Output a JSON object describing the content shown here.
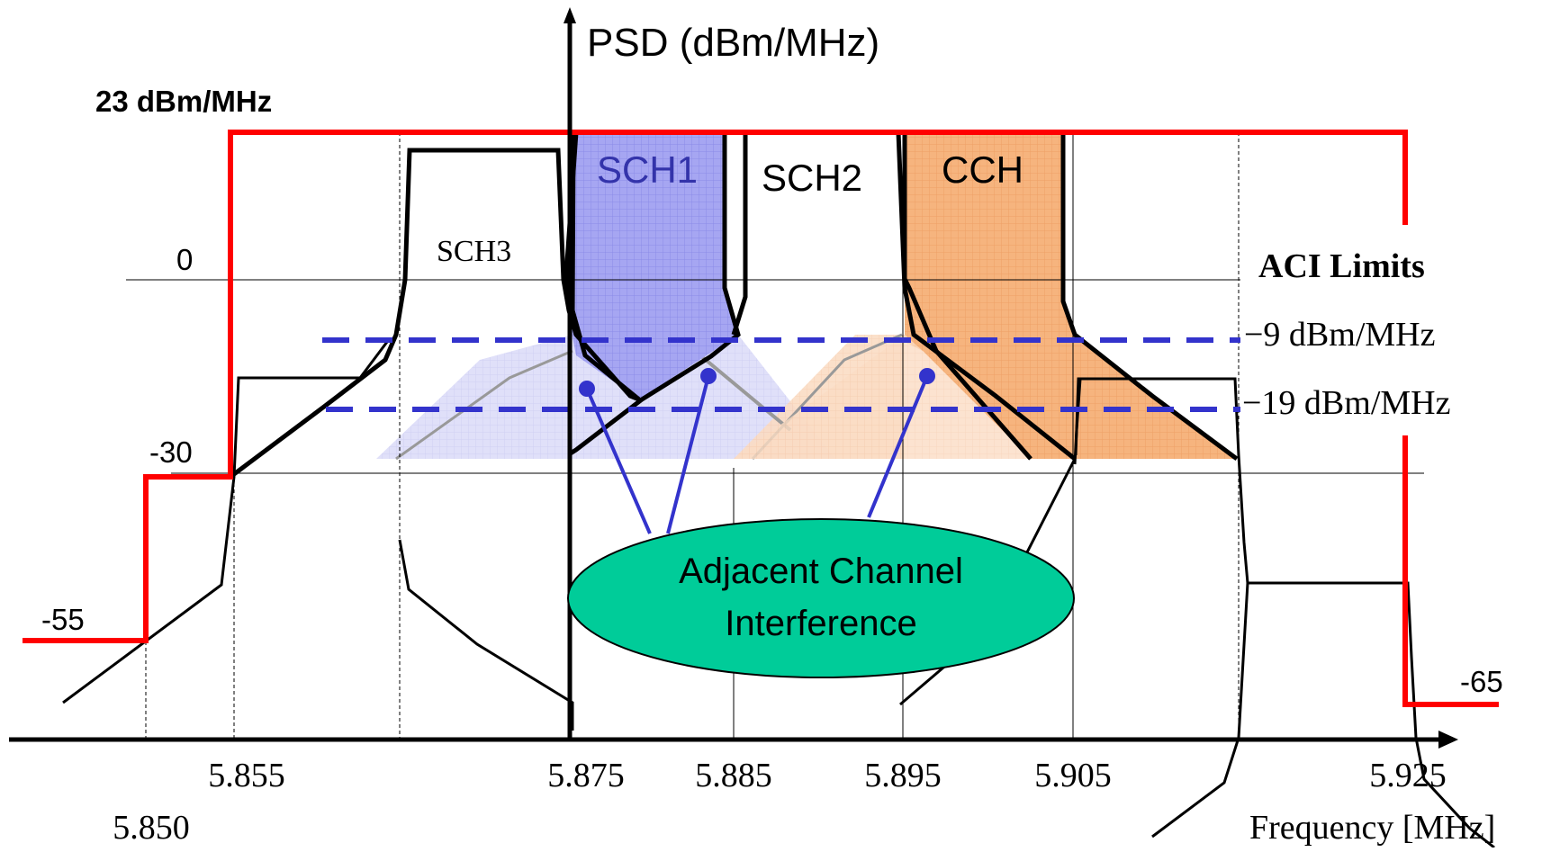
{
  "y_axis": {
    "label": "PSD  (dBm/MHz)"
  },
  "x_axis": {
    "label": "Frequency [MHz]",
    "ticks": [
      "5.850",
      "5.855",
      "5.875",
      "5.885",
      "5.895",
      "5.905",
      "5.925"
    ]
  },
  "levels": {
    "max_label": "23 dBm/MHz",
    "zero": "0",
    "minus30": "-30",
    "minus55": "-55",
    "minus65": "-65"
  },
  "channels": {
    "sch1": "SCH1",
    "sch2": "SCH2",
    "sch3": "SCH3",
    "cch": "CCH"
  },
  "aci": {
    "title": "ACI Limits",
    "limit1": "−9 dBm/MHz",
    "limit2": "−19 dBm/MHz"
  },
  "callout": {
    "line1": "Adjacent Channel",
    "line2": "Interference"
  },
  "colors": {
    "mask": "#ff0000",
    "aci_dash": "#3333cc",
    "sch1_fill": "#9999ee",
    "cch_fill": "#f5b27a",
    "callout_fill": "#00cc99",
    "callout_line": "#3333cc"
  }
}
